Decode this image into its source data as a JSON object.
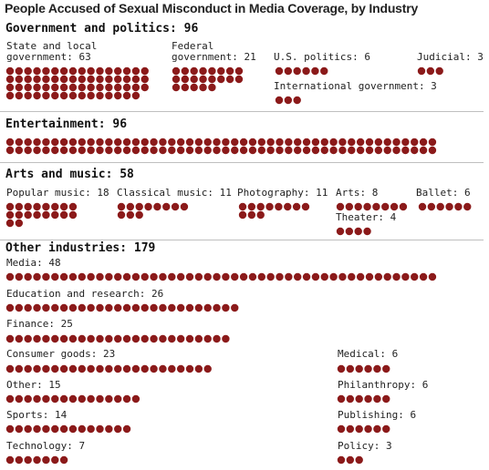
{
  "title": "People Accused of Sexual Misconduct in Media Coverage, by Industry",
  "dot_color": "#8b1a1a",
  "sections": {
    "government": {
      "header": "Government and politics: 96"
    },
    "entertainment": {
      "header": "Entertainment: 96"
    },
    "arts": {
      "header": "Arts and music: 58"
    },
    "other": {
      "header": "Other industries: 179"
    }
  },
  "chart_data": {
    "type": "dot-matrix",
    "title": "People Accused of Sexual Misconduct in Media Coverage, by Industry",
    "unit": "one dot per person",
    "groups": [
      {
        "name": "Government and politics",
        "total": 96,
        "categories": [
          {
            "id": "state-local",
            "label": "State and local\ngovernment: 63",
            "value": 63
          },
          {
            "id": "federal",
            "label": "Federal\ngovernment: 21",
            "value": 21
          },
          {
            "id": "us-politics",
            "label": "U.S. politics: 6",
            "value": 6
          },
          {
            "id": "judicial",
            "label": "Judicial: 3",
            "value": 3
          },
          {
            "id": "international",
            "label": "International government: 3",
            "value": 3
          }
        ]
      },
      {
        "name": "Entertainment",
        "total": 96,
        "categories": [
          {
            "id": "entertainment",
            "label": "",
            "value": 96
          }
        ]
      },
      {
        "name": "Arts and music",
        "total": 58,
        "categories": [
          {
            "id": "popular-music",
            "label": "Popular music: 18",
            "value": 18
          },
          {
            "id": "classical-music",
            "label": "Classical music: 11",
            "value": 11
          },
          {
            "id": "photography",
            "label": "Photography: 11",
            "value": 11
          },
          {
            "id": "arts",
            "label": "Arts: 8",
            "value": 8
          },
          {
            "id": "ballet",
            "label": "Ballet: 6",
            "value": 6
          },
          {
            "id": "theater",
            "label": "Theater: 4",
            "value": 4
          }
        ]
      },
      {
        "name": "Other industries",
        "total": 179,
        "categories": [
          {
            "id": "media",
            "label": "Media: 48",
            "value": 48
          },
          {
            "id": "education",
            "label": "Education and research: 26",
            "value": 26
          },
          {
            "id": "finance",
            "label": "Finance: 25",
            "value": 25
          },
          {
            "id": "consumer-goods",
            "label": "Consumer goods: 23",
            "value": 23
          },
          {
            "id": "other",
            "label": "Other: 15",
            "value": 15
          },
          {
            "id": "sports",
            "label": "Sports: 14",
            "value": 14
          },
          {
            "id": "technology",
            "label": "Technology: 7",
            "value": 7
          },
          {
            "id": "medical",
            "label": "Medical: 6",
            "value": 6
          },
          {
            "id": "philanthropy",
            "label": "Philanthropy: 6",
            "value": 6
          },
          {
            "id": "publishing",
            "label": "Publishing: 6",
            "value": 6
          },
          {
            "id": "policy",
            "label": "Policy: 3",
            "value": 3
          }
        ]
      }
    ]
  }
}
